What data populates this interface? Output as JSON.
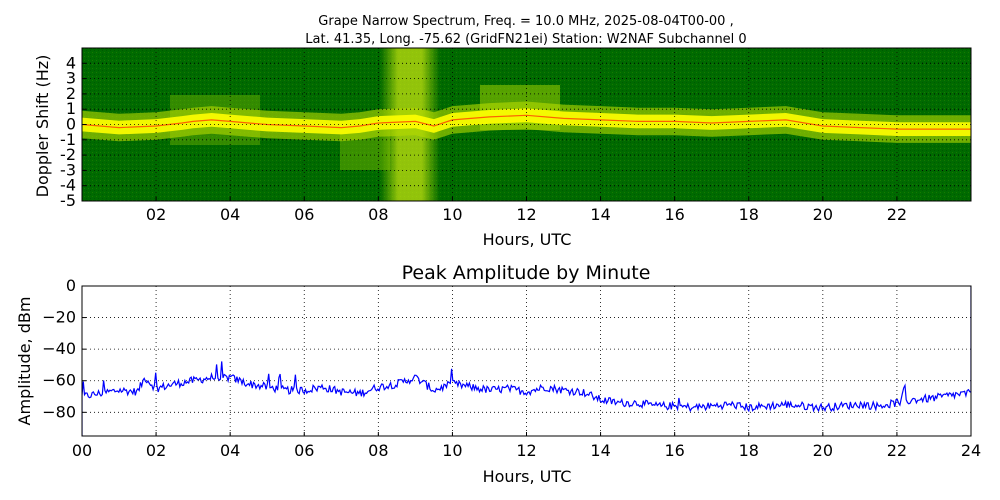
{
  "chart_data": [
    {
      "type": "heatmap",
      "title_line1": "Grape Narrow Spectrum, Freq. = 10.0 MHz, 2025-08-04T00-00 ,",
      "title_line2": "Lat.  41.35, Long. -75.62 (GridFN21ei) Station: W2NAF Subchannel 0",
      "xlabel": "Hours, UTC",
      "ylabel": "Doppler Shift (Hz)",
      "xlim": [
        0,
        24
      ],
      "ylim": [
        -5,
        5
      ],
      "x_ticks": [
        "02",
        "04",
        "06",
        "08",
        "10",
        "12",
        "14",
        "16",
        "18",
        "20",
        "22"
      ],
      "y_ticks": [
        "4",
        "3",
        "2",
        "1",
        "0",
        "-1",
        "-2",
        "-3",
        "-4",
        "-5"
      ],
      "grid": true,
      "colors": {
        "background": "#006a00",
        "mid": "#9ccf00",
        "high": "#ffff00",
        "peak": "#ff3000"
      },
      "doppler_trace": {
        "x": [
          0,
          1,
          2,
          2.7,
          3,
          3.5,
          4,
          4.5,
          5,
          6,
          7,
          7.5,
          8,
          9,
          9.5,
          10,
          11,
          12,
          13,
          14,
          15,
          16,
          17,
          18,
          19,
          20,
          21,
          22,
          23,
          24
        ],
        "y": [
          0,
          -0.2,
          -0.1,
          0.1,
          0.2,
          0.3,
          0.2,
          0.1,
          0,
          -0.1,
          -0.2,
          -0.1,
          0.1,
          0.2,
          -0.1,
          0.3,
          0.5,
          0.6,
          0.4,
          0.3,
          0.2,
          0.2,
          0.1,
          0.2,
          0.3,
          -0.1,
          -0.2,
          -0.3,
          -0.3,
          -0.3
        ]
      }
    },
    {
      "type": "line",
      "title": "Peak Amplitude by Minute",
      "xlabel": "Hours, UTC",
      "ylabel": "Amplitude, dBm",
      "xlim": [
        0,
        24
      ],
      "ylim": [
        -95,
        0
      ],
      "x_ticks": [
        "00",
        "02",
        "04",
        "06",
        "08",
        "10",
        "12",
        "14",
        "16",
        "18",
        "20",
        "22",
        "24"
      ],
      "y_ticks": [
        "0",
        "−20",
        "−40",
        "−60",
        "−80"
      ],
      "grid": true,
      "series": [
        {
          "color": "#0000ff",
          "x": [
            0,
            0.5,
            1,
            1.5,
            1.7,
            2,
            2.5,
            3,
            3.5,
            4,
            4.5,
            5,
            5.5,
            6,
            6.5,
            7,
            7.5,
            8,
            8.5,
            9,
            9.5,
            10,
            10.5,
            11,
            11.5,
            12,
            12.5,
            13,
            13.5,
            14,
            14.5,
            15,
            15.5,
            16,
            16.5,
            17,
            17.5,
            18,
            18.5,
            19,
            19.5,
            20,
            20.5,
            21,
            21.5,
            22,
            22.5,
            23,
            23.5,
            24
          ],
          "y": [
            -70,
            -68,
            -66,
            -67,
            -58,
            -65,
            -62,
            -60,
            -58,
            -58,
            -62,
            -64,
            -66,
            -66,
            -64,
            -67,
            -68,
            -64,
            -62,
            -58,
            -66,
            -62,
            -64,
            -66,
            -65,
            -67,
            -64,
            -66,
            -67,
            -72,
            -74,
            -74,
            -76,
            -76,
            -77,
            -76,
            -75,
            -77,
            -76,
            -75,
            -76,
            -77,
            -76,
            -75,
            -76,
            -74,
            -72,
            -71,
            -69,
            -68
          ]
        }
      ]
    }
  ]
}
